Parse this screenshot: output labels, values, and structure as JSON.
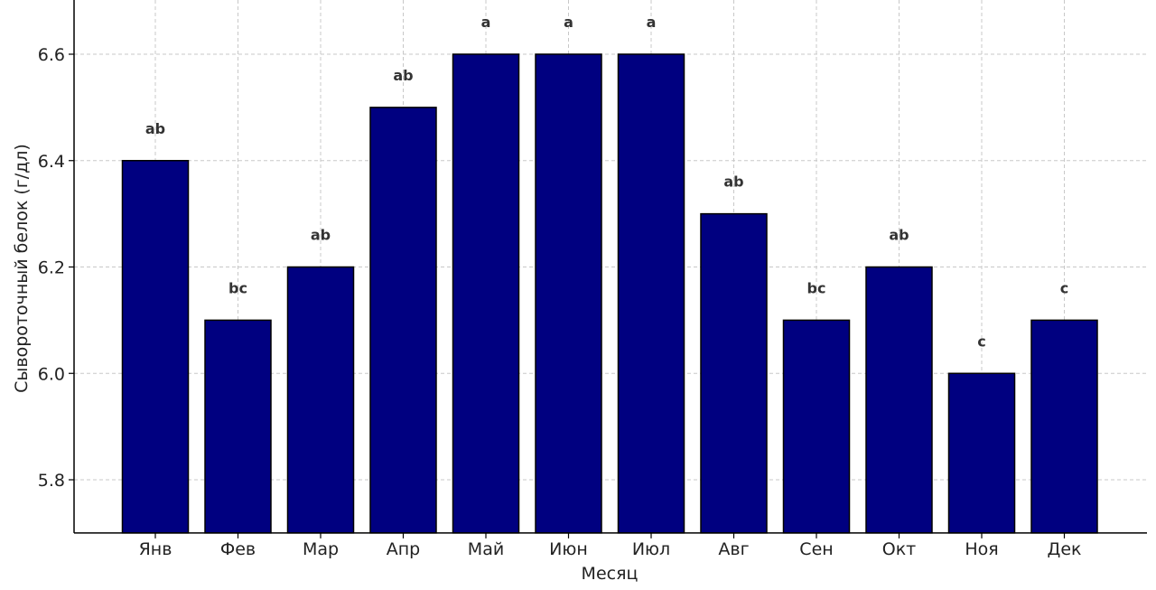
{
  "chart_data": {
    "type": "bar",
    "title": "",
    "xlabel": "Месяц",
    "ylabel": "Сывороточный белок (г/дл)",
    "categories": [
      "Янв",
      "Фев",
      "Мар",
      "Апр",
      "Май",
      "Июн",
      "Июл",
      "Авг",
      "Сен",
      "Окт",
      "Ноя",
      "Дек"
    ],
    "values": [
      6.4,
      6.1,
      6.2,
      6.5,
      6.6,
      6.6,
      6.6,
      6.3,
      6.1,
      6.2,
      6.0,
      6.1
    ],
    "data_labels": [
      "ab",
      "bc",
      "ab",
      "ab",
      "a",
      "a",
      "a",
      "ab",
      "bc",
      "ab",
      "c",
      "c"
    ],
    "ylim": [
      5.7,
      6.7
    ],
    "yticks": [
      "5.8",
      "6.0",
      "6.2",
      "6.4",
      "6.6"
    ],
    "grid": true,
    "colors": {
      "bar": "#000080",
      "edge": "#000000"
    }
  }
}
